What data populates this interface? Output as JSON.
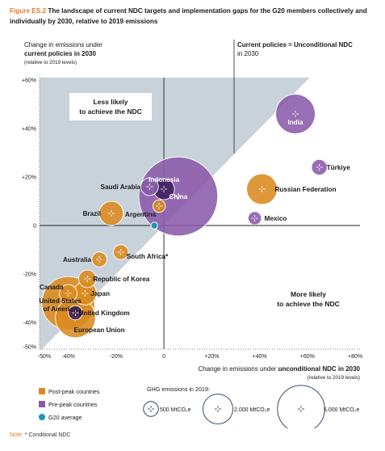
{
  "figure": {
    "label": "Figure ES.2",
    "title": "The landscape of current NDC targets and implementation gaps for the G20 members collectively and individually by 2030, relative to 2019 emissions"
  },
  "note": {
    "label": "Note:",
    "text": "* Conditional NDC"
  },
  "colors": {
    "post_peak": "#d98a1f",
    "pre_peak": "#8a5aaa",
    "g20_average": "#1a96b8",
    "shaded_region": "#c8d2da",
    "dark_bubble": "#3a1f5c"
  },
  "chart_data": {
    "type": "scatter",
    "ylabel": {
      "line1": "Change in emissions under",
      "line2": "current policies in 2030",
      "line3": "(relative to 2019 levels)"
    },
    "xlabel": {
      "pre": "Change in emissions under ",
      "bold": "unconditional NDC in 2030",
      "sub": "(relative to 2019 levels)"
    },
    "diagonal_label": {
      "bold": "Current policies = Unconditional NDC",
      "sub": "in 2030"
    },
    "xlim": [
      -52,
      82
    ],
    "ylim": [
      -51,
      61
    ],
    "x_ticks": [
      -50,
      -40,
      -20,
      0,
      20,
      40,
      60,
      80
    ],
    "x_tick_labels": [
      "-50%",
      "-40%",
      "-20%",
      "0",
      "+20%",
      "+40%",
      "+60%",
      "+80%"
    ],
    "y_ticks": [
      60,
      40,
      20,
      0,
      -20,
      -40,
      -50
    ],
    "y_tick_labels": [
      "+60%",
      "+40%",
      "+20%",
      "0",
      "-20%",
      "-40%",
      "-50%"
    ],
    "region_labels": [
      {
        "lines": [
          "Less likely",
          "to achieve the NDC"
        ]
      },
      {
        "lines": [
          "More likely",
          "to achieve the NDC"
        ]
      }
    ],
    "points": [
      {
        "name": "China",
        "x": 6,
        "y": 12,
        "emissions": 14000,
        "group": "pre"
      },
      {
        "name": "United States of America",
        "x": -40,
        "y": -32,
        "emissions": 6300,
        "group": "post"
      },
      {
        "name": "European Union",
        "x": -37,
        "y": -38,
        "emissions": 3600,
        "group": "post"
      },
      {
        "name": "Indonesia",
        "x": 0,
        "y": 15,
        "emissions": 1000,
        "group": "pre"
      },
      {
        "name": "India",
        "x": 55,
        "y": 46,
        "emissions": 3500,
        "group": "pre"
      },
      {
        "name": "Russian Federation",
        "x": 41,
        "y": 15,
        "emissions": 2100,
        "group": "post"
      },
      {
        "name": "Brazil",
        "x": -22,
        "y": 5,
        "emissions": 1300,
        "group": "post"
      },
      {
        "name": "Canada",
        "x": -40,
        "y": -28,
        "emissions": 700,
        "group": "post"
      },
      {
        "name": "Japan",
        "x": -33,
        "y": -28,
        "emissions": 1200,
        "group": "post"
      },
      {
        "name": "United Kingdom",
        "x": -37,
        "y": -36,
        "emissions": 450,
        "group": "post"
      },
      {
        "name": "Republic of Korea",
        "x": -32,
        "y": -22,
        "emissions": 700,
        "group": "post"
      },
      {
        "name": "Mexico",
        "x": 38,
        "y": 3,
        "emissions": 400,
        "group": "pre"
      },
      {
        "name": "Türkiye",
        "x": 65,
        "y": 24,
        "emissions": 550,
        "group": "pre"
      },
      {
        "name": "Saudi Arabia",
        "x": -6,
        "y": 16,
        "emissions": 700,
        "group": "pre"
      },
      {
        "name": "Argentina",
        "x": -2,
        "y": 8,
        "emissions": 350,
        "group": "post"
      },
      {
        "name": "South Africa*",
        "x": -18,
        "y": -11,
        "emissions": 500,
        "group": "post"
      },
      {
        "name": "Australia",
        "x": -27,
        "y": -14,
        "emissions": 500,
        "group": "post"
      },
      {
        "name": "G20 average",
        "x": -4,
        "y": 0,
        "emissions": null,
        "group": "avg"
      }
    ]
  },
  "legend": {
    "groups": [
      {
        "label": "Post-peak countries",
        "color_key": "post_peak"
      },
      {
        "label": "Pre-peak countries",
        "color_key": "pre_peak"
      },
      {
        "label": "G20 average",
        "color_key": "g20_average"
      }
    ],
    "size_title": "GHG emissions in 2019:",
    "sizes": [
      {
        "value": 500,
        "label": "500 MtCO₂e"
      },
      {
        "value": 2000,
        "label": "2,000 MtCO₂e"
      },
      {
        "value": 5000,
        "label": "5,000 MtCO₂e"
      }
    ]
  }
}
